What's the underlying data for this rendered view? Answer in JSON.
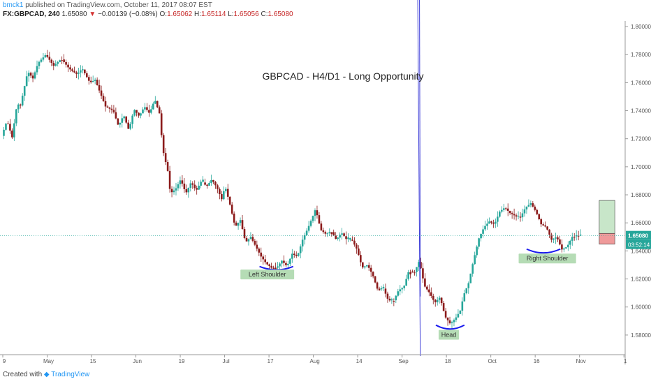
{
  "header": {
    "author": "bmck1",
    "published_text": "published on TradingView.com, October 11, 2017 08:07 EST",
    "symbol": "FX:GBPCAD, 240",
    "last": "1.65080",
    "change": "−0.00139 (−0.08%)",
    "o_label": "O:",
    "o": "1.65062",
    "h_label": "H:",
    "h": "1.65114",
    "l_label": "L:",
    "l": "1.65056",
    "c_label": "C:",
    "c": "1.65080"
  },
  "footer": {
    "created_with": "Created with",
    "brand": "TradingView"
  },
  "colors": {
    "up": "#26a69a",
    "down": "#8b1a1a",
    "channel": "#3f3fd8",
    "neckline": "#26a69a",
    "profit": "#a5d6a7",
    "loss": "#ef9a9a"
  },
  "chart_data": {
    "type": "candlestick",
    "title": "GBPCAD - H4/D1 - Long Opportunity",
    "ylim": [
      1.566,
      1.804
    ],
    "y_ticks": [
      "1.80000",
      "1.78000",
      "1.76000",
      "1.74000",
      "1.72000",
      "1.70000",
      "1.68000",
      "1.66000",
      "1.64000",
      "1.62000",
      "1.60000",
      "1.58000"
    ],
    "x_ticks": [
      "9",
      "May",
      "15",
      "Jun",
      "19",
      "Jul",
      "17",
      "Aug",
      "14",
      "Sep",
      "18",
      "Oct",
      "16",
      "Nov",
      "1"
    ],
    "last_price_label": "1.65080",
    "countdown_label": "03:52:14",
    "price_path": [
      [
        0,
        1.722
      ],
      [
        2,
        1.733
      ],
      [
        4,
        1.721
      ],
      [
        6,
        1.746
      ],
      [
        7,
        1.742
      ],
      [
        10,
        1.768
      ],
      [
        12,
        1.763
      ],
      [
        14,
        1.774
      ],
      [
        17,
        1.78
      ],
      [
        20,
        1.772
      ],
      [
        23,
        1.777
      ],
      [
        26,
        1.77
      ],
      [
        29,
        1.766
      ],
      [
        31,
        1.77
      ],
      [
        34,
        1.76
      ],
      [
        36,
        1.762
      ],
      [
        40,
        1.743
      ],
      [
        43,
        1.74
      ],
      [
        45,
        1.729
      ],
      [
        47,
        1.737
      ],
      [
        49,
        1.726
      ],
      [
        51,
        1.741
      ],
      [
        53,
        1.736
      ],
      [
        55,
        1.743
      ],
      [
        57,
        1.738
      ],
      [
        59,
        1.748
      ],
      [
        61,
        1.737
      ],
      [
        62,
        1.713
      ],
      [
        64,
        1.697
      ],
      [
        65,
        1.681
      ],
      [
        67,
        1.684
      ],
      [
        69,
        1.691
      ],
      [
        71,
        1.681
      ],
      [
        73,
        1.689
      ],
      [
        75,
        1.683
      ],
      [
        77,
        1.69
      ],
      [
        79,
        1.686
      ],
      [
        81,
        1.691
      ],
      [
        83,
        1.685
      ],
      [
        85,
        1.676
      ],
      [
        86,
        1.687
      ],
      [
        88,
        1.673
      ],
      [
        90,
        1.657
      ],
      [
        92,
        1.662
      ],
      [
        94,
        1.646
      ],
      [
        96,
        1.65
      ],
      [
        98,
        1.643
      ],
      [
        100,
        1.636
      ],
      [
        102,
        1.631
      ],
      [
        104,
        1.628
      ],
      [
        106,
        1.628
      ],
      [
        108,
        1.633
      ],
      [
        110,
        1.629
      ],
      [
        112,
        1.638
      ],
      [
        114,
        1.636
      ],
      [
        116,
        1.648
      ],
      [
        118,
        1.656
      ],
      [
        120,
        1.665
      ],
      [
        121,
        1.67
      ],
      [
        123,
        1.655
      ],
      [
        125,
        1.652
      ],
      [
        127,
        1.654
      ],
      [
        129,
        1.648
      ],
      [
        131,
        1.653
      ],
      [
        133,
        1.648
      ],
      [
        135,
        1.648
      ],
      [
        137,
        1.641
      ],
      [
        139,
        1.628
      ],
      [
        141,
        1.63
      ],
      [
        143,
        1.623
      ],
      [
        145,
        1.612
      ],
      [
        147,
        1.614
      ],
      [
        149,
        1.605
      ],
      [
        151,
        1.604
      ],
      [
        153,
        1.612
      ],
      [
        155,
        1.614
      ],
      [
        157,
        1.626
      ],
      [
        159,
        1.624
      ],
      [
        161,
        1.633
      ],
      [
        163,
        1.615
      ],
      [
        165,
        1.61
      ],
      [
        167,
        1.603
      ],
      [
        169,
        1.607
      ],
      [
        171,
        1.593
      ],
      [
        173,
        1.588
      ],
      [
        175,
        1.592
      ],
      [
        177,
        1.598
      ],
      [
        178,
        1.608
      ],
      [
        180,
        1.617
      ],
      [
        182,
        1.634
      ],
      [
        184,
        1.649
      ],
      [
        186,
        1.657
      ],
      [
        188,
        1.661
      ],
      [
        190,
        1.659
      ],
      [
        192,
        1.668
      ],
      [
        194,
        1.671
      ],
      [
        196,
        1.667
      ],
      [
        198,
        1.665
      ],
      [
        200,
        1.664
      ],
      [
        202,
        1.671
      ],
      [
        204,
        1.674
      ],
      [
        206,
        1.668
      ],
      [
        208,
        1.659
      ],
      [
        210,
        1.657
      ],
      [
        212,
        1.648
      ],
      [
        214,
        1.65
      ],
      [
        216,
        1.641
      ],
      [
        218,
        1.643
      ],
      [
        220,
        1.65
      ],
      [
        222,
        1.651
      ],
      [
        223,
        1.6508
      ]
    ],
    "channel_upper": [
      [
        1.8,
        113
      ],
      [
        161.0,
        1.6075
      ]
    ],
    "channel_lower": [
      [
        1.8,
        43
      ],
      [
        161.0,
        1.565
      ]
    ],
    "annotations": [
      {
        "label": "Left Shoulder",
        "x": 102,
        "y": 1.6232
      },
      {
        "label": "Head",
        "x": 172,
        "y": 1.5802
      },
      {
        "label": "Right Shoulder",
        "x": 210,
        "y": 1.6346
      }
    ],
    "arcs": [
      {
        "x1": 99,
        "x2": 112,
        "y_top": 1.6289,
        "y_bottom": 1.6265
      },
      {
        "x1": 167,
        "x2": 178,
        "y_top": 1.5871,
        "y_bottom": 1.5843
      },
      {
        "x1": 202,
        "x2": 215,
        "y_top": 1.6413,
        "y_bottom": 1.6386
      }
    ],
    "position_box": {
      "x1": 230,
      "x2": 236,
      "target": 1.676,
      "entry": 1.6525,
      "stop": 1.6448
    }
  }
}
